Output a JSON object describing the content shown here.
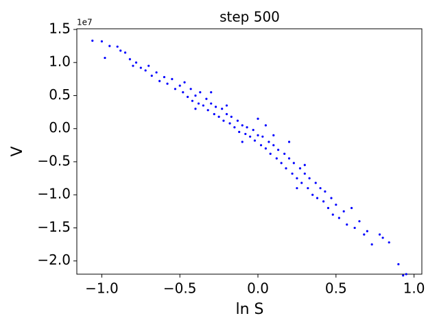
{
  "chart_data": {
    "type": "scatter",
    "title": "step 500",
    "x_label": "ln S",
    "y_label": "V",
    "y_offset_label": "1e7",
    "color": "#0000ff",
    "x": [
      -1.06,
      -1.0,
      -0.98,
      -0.95,
      -0.9,
      -0.88,
      -0.85,
      -0.82,
      -0.8,
      -0.78,
      -0.75,
      -0.72,
      -0.7,
      -0.68,
      -0.65,
      -0.63,
      -0.6,
      -0.58,
      -0.55,
      -0.53,
      -0.5,
      -0.48,
      -0.47,
      -0.45,
      -0.43,
      -0.42,
      -0.4,
      -0.38,
      -0.37,
      -0.35,
      -0.33,
      -0.32,
      -0.3,
      -0.28,
      -0.27,
      -0.25,
      -0.23,
      -0.22,
      -0.2,
      -0.18,
      -0.17,
      -0.15,
      -0.13,
      -0.12,
      -0.1,
      -0.08,
      -0.07,
      -0.05,
      -0.03,
      -0.02,
      0.0,
      0.02,
      0.03,
      0.05,
      0.07,
      0.08,
      0.1,
      0.12,
      0.13,
      0.15,
      0.17,
      0.18,
      0.2,
      0.22,
      0.23,
      0.25,
      0.27,
      0.28,
      0.3,
      0.32,
      0.33,
      0.35,
      0.37,
      0.38,
      0.4,
      0.42,
      0.43,
      0.45,
      0.47,
      0.48,
      0.5,
      0.52,
      0.55,
      0.57,
      0.6,
      0.62,
      0.65,
      0.68,
      0.7,
      0.73,
      0.78,
      0.8,
      0.84,
      0.9,
      0.93,
      0.95,
      0.0,
      -0.1,
      0.1,
      0.2,
      -0.3,
      -0.4,
      0.3,
      0.25,
      -0.2,
      0.05
    ],
    "values": [
      1.33,
      1.32,
      1.07,
      1.25,
      1.24,
      1.18,
      1.15,
      1.05,
      0.95,
      1.0,
      0.92,
      0.88,
      0.95,
      0.8,
      0.85,
      0.72,
      0.78,
      0.68,
      0.75,
      0.6,
      0.65,
      0.55,
      0.7,
      0.48,
      0.6,
      0.42,
      0.5,
      0.38,
      0.55,
      0.35,
      0.45,
      0.28,
      0.38,
      0.22,
      0.33,
      0.18,
      0.3,
      0.12,
      0.22,
      0.08,
      0.18,
      0.02,
      0.12,
      -0.05,
      0.05,
      -0.08,
      0.02,
      -0.12,
      -0.02,
      -0.18,
      -0.1,
      -0.25,
      -0.12,
      -0.3,
      -0.2,
      -0.38,
      -0.25,
      -0.45,
      -0.32,
      -0.52,
      -0.38,
      -0.6,
      -0.45,
      -0.68,
      -0.52,
      -0.75,
      -0.6,
      -0.82,
      -0.68,
      -0.9,
      -0.75,
      -1.0,
      -0.82,
      -1.05,
      -0.9,
      -1.1,
      -0.95,
      -1.2,
      -1.05,
      -1.3,
      -1.15,
      -1.35,
      -1.25,
      -1.45,
      -1.2,
      -1.5,
      -1.4,
      -1.6,
      -1.55,
      -1.75,
      -1.6,
      -1.65,
      -1.72,
      -2.05,
      -2.22,
      -2.2,
      0.15,
      -0.2,
      -0.1,
      -0.2,
      0.55,
      0.3,
      -0.55,
      -0.9,
      0.35,
      0.05
    ],
    "xlim": [
      -1.16,
      1.05
    ],
    "xticks": [
      {
        "value": -1.0,
        "label": "−1.0"
      },
      {
        "value": -0.5,
        "label": "−0.5"
      },
      {
        "value": 0,
        "label": "0.0"
      },
      0.5,
      {
        "value": 1.0,
        "label": "1.0"
      }
    ],
    "ylim": [
      -2.2,
      1.51
    ],
    "yticks": [
      1.5,
      {
        "value": 1.0,
        "label": "1.0"
      },
      0.5,
      {
        "value": 0,
        "label": "0.0"
      },
      {
        "value": -0.5,
        "label": "−0.5"
      },
      {
        "value": -1.0,
        "label": "−1.0"
      },
      {
        "value": -1.5,
        "label": "−1.5"
      },
      {
        "value": -2.0,
        "label": "−2.0"
      }
    ]
  }
}
